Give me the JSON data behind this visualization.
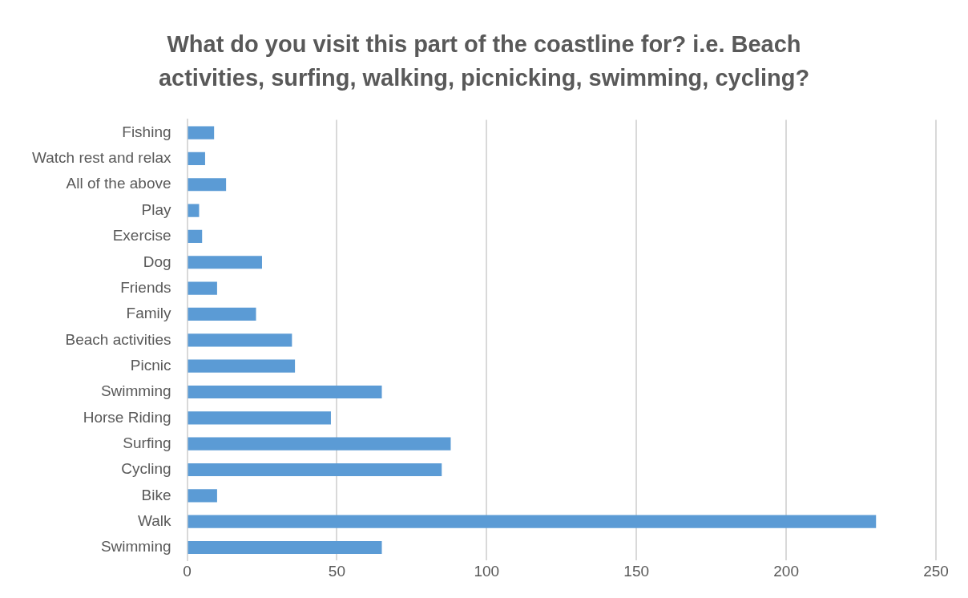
{
  "chart_data": {
    "type": "bar",
    "orientation": "horizontal",
    "title": "What do you visit this part of the coastline for? i.e. Beach activities, surfing, walking, picnicking, swimming, cycling?",
    "categories": [
      "Fishing",
      "Watch rest and relax",
      "All of the above",
      "Play",
      "Exercise",
      "Dog",
      "Friends",
      "Family",
      "Beach activities",
      "Picnic",
      "Swimming",
      "Horse Riding",
      "Surfing",
      "Cycling",
      "Bike",
      "Walk",
      "Swimming"
    ],
    "values": [
      9,
      6,
      13,
      4,
      5,
      25,
      10,
      23,
      35,
      36,
      65,
      48,
      88,
      85,
      10,
      230,
      65
    ],
    "color": "#5b9bd5",
    "xlim": [
      0,
      250
    ],
    "xticks": [
      0,
      50,
      100,
      150,
      200,
      250
    ],
    "grid": "x",
    "legend": false
  }
}
